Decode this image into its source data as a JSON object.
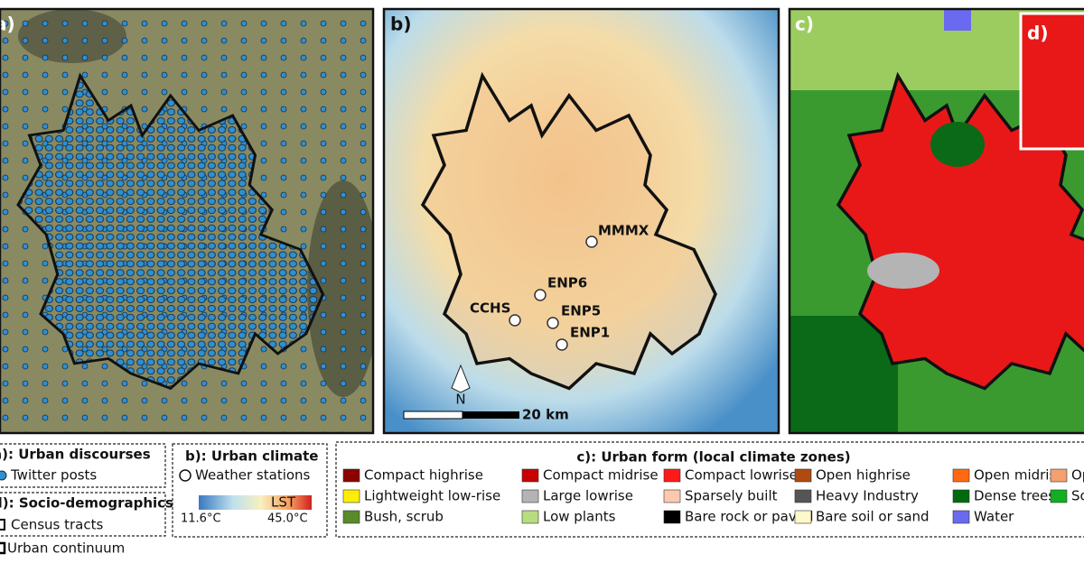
{
  "panels": {
    "a": "a)",
    "b": "b)",
    "c": "c)",
    "d": "d)"
  },
  "stations": [
    "MMMX",
    "ENP6",
    "CCHS",
    "ENP5",
    "ENP1"
  ],
  "north": "N",
  "scale_bar": "20 km",
  "legend_a": {
    "title": "a): Urban discourses",
    "item": "Twitter posts"
  },
  "legend_d": {
    "title": "d): Socio-demographics",
    "items": [
      "Census tracts",
      "Urban continuum"
    ]
  },
  "legend_b": {
    "title": "b): Urban climate",
    "item": "Weather stations",
    "colorbar_label": "LST",
    "min": "11.6°C",
    "max": "45.0°C"
  },
  "legend_c": {
    "title": "c): Urban form (local climate zones)",
    "items": [
      {
        "name": "Compact highrise",
        "color": "#8b0000"
      },
      {
        "name": "Compact midrise",
        "color": "#c80000"
      },
      {
        "name": "Compact lowrise",
        "color": "#ff1a1a"
      },
      {
        "name": "Open highrise",
        "color": "#b04a10"
      },
      {
        "name": "Open midrise",
        "color": "#ff6a10"
      },
      {
        "name": "Open lowrise",
        "color": "#f4a070"
      },
      {
        "name": "Lightweight low-rise",
        "color": "#ffee00"
      },
      {
        "name": "Large lowrise",
        "color": "#b4b4b4"
      },
      {
        "name": "Sparsely built",
        "color": "#fcc8b0"
      },
      {
        "name": "Heavy Industry",
        "color": "#555555"
      },
      {
        "name": "Dense trees",
        "color": "#006a10"
      },
      {
        "name": "Scattered trees",
        "color": "#10b020"
      },
      {
        "name": "Bush, scrub",
        "color": "#5a8a2a"
      },
      {
        "name": "Low plants",
        "color": "#b8dc80"
      },
      {
        "name": "Bare rock or paved",
        "color": "#000000"
      },
      {
        "name": "Bare soil or sand",
        "color": "#fff8c8"
      },
      {
        "name": "Water",
        "color": "#6a6af0"
      }
    ]
  }
}
